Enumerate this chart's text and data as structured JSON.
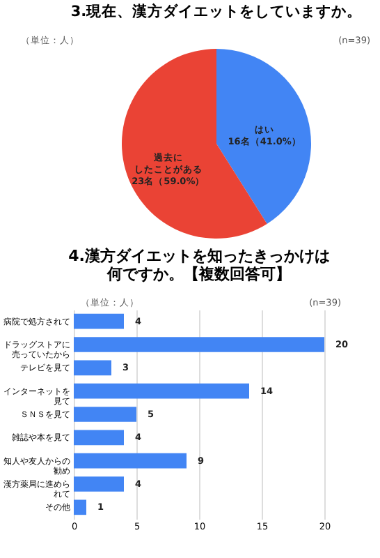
{
  "chart_data": [
    {
      "type": "pie",
      "title": "3.現在、漢方ダイエットをしていますか。",
      "annotations": [
        "（単位：人）",
        "(n=39)"
      ],
      "categories": [
        "はい",
        "過去にしたことがある"
      ],
      "values": [
        16,
        23
      ],
      "colors": [
        "#4285f4",
        "#ea4335"
      ],
      "value_labels": [
        "16名（41.0%）",
        "23名（59.0%）"
      ]
    },
    {
      "type": "bar",
      "orientation": "horizontal",
      "title": "4.漢方ダイエットを知ったきっかけは何ですか。【複数回答可】",
      "annotations": [
        "（単位：人）",
        "(n=39)"
      ],
      "categories": [
        "病院で処方されて",
        "ドラッグストアに売っていたから",
        "テレビを見て",
        "インターネットを見て",
        "ＳＮＳを見て",
        "雑誌や本を見て",
        "知人や友人からの勧め",
        "漢方薬局に進められて",
        "その他"
      ],
      "series": [
        {
          "color": "#4285f4",
          "values": [
            4,
            20,
            3,
            14,
            5,
            4,
            9,
            4,
            1
          ]
        }
      ],
      "xlim": [
        0,
        20
      ],
      "xticks": [
        0,
        5,
        10,
        15,
        20
      ],
      "grid": "x",
      "data_labels": true
    }
  ]
}
